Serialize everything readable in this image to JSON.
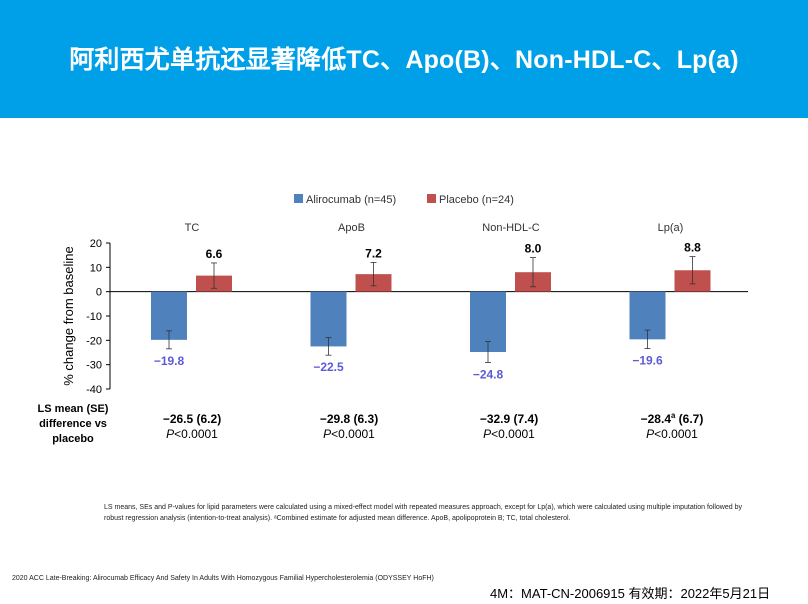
{
  "slide": {
    "title": "阿利西尤单抗还显著降低TC、Apo(B)、Non-HDL-C、Lp(a)"
  },
  "chart_data": {
    "type": "bar",
    "categories": [
      "TC",
      "ApoB",
      "Non-HDL-C",
      "Lp(a)"
    ],
    "series": [
      {
        "name": "Alirocumab (n=45)",
        "color": "#4f81bd",
        "values": [
          -19.8,
          -22.5,
          -24.8,
          -19.6
        ],
        "value_labels": [
          "−19.8",
          "−22.5",
          "−24.8",
          "−19.6"
        ],
        "error": [
          3.7,
          3.6,
          4.3,
          3.8
        ]
      },
      {
        "name": "Placebo (n=24)",
        "color": "#c0504d",
        "values": [
          6.6,
          7.2,
          8.0,
          8.8
        ],
        "value_labels": [
          "6.6",
          "7.2",
          "8.0",
          "8.8"
        ],
        "error": [
          5.2,
          4.8,
          6.0,
          5.6
        ]
      }
    ],
    "ylabel": "% change from baseline",
    "ylim": [
      -40,
      20
    ],
    "yticks": [
      20,
      10,
      0,
      -10,
      -20,
      -30,
      -40
    ],
    "legend": "top-center",
    "value_label_colors": [
      "#5b5bd6",
      "#000000"
    ]
  },
  "ls_mean": {
    "label_line1": "LS mean (SE)",
    "label_line2": "difference vs placebo",
    "items": [
      {
        "value": "−26.5 (6.2)",
        "sup": "",
        "se": "",
        "p_italic": "P",
        "p_rest": "<0.0001"
      },
      {
        "value": "−29.8 (6.3)",
        "sup": "",
        "se": "",
        "p_italic": "P",
        "p_rest": "<0.0001"
      },
      {
        "value": "−32.9 (7.4)",
        "sup": "",
        "se": "",
        "p_italic": "P",
        "p_rest": "<0.0001"
      },
      {
        "value": "−28.4",
        "sup": "a",
        "se": " (6.7)",
        "p_italic": "P",
        "p_rest": "<0.0001"
      }
    ]
  },
  "footnote": "LS means, SEs and P-values for lipid parameters were calculated using a mixed-effect model with repeated measures approach, except for Lp(a), which were calculated using multiple imputation followed by robust regression analysis (intention-to-treat analysis). ᵃCombined estimate for adjusted mean difference. ApoB, apolipoprotein B; TC, total cholesterol.",
  "citation": "2020 ACC Late-Breaking: Alirocumab Efficacy And Safety In Adults With Homozygous Familial Hypercholesterolemia (ODYSSEY HoFH)",
  "approval": "4M：MAT-CN-2006915  有效期：2022年5月21日"
}
